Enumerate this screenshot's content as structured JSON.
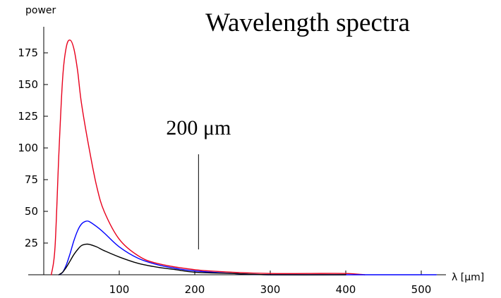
{
  "chart_data": {
    "type": "line",
    "title": "Wavelength spectra",
    "xlabel": "λ [μm]",
    "ylabel": "power",
    "xlim": [
      0,
      520
    ],
    "ylim": [
      0,
      190
    ],
    "x_ticks": [
      100,
      200,
      300,
      400,
      500
    ],
    "y_ticks": [
      25,
      50,
      75,
      100,
      125,
      150,
      175
    ],
    "grid": false,
    "annotations": [
      {
        "text": "200 μm",
        "x": 205,
        "y_from": 20,
        "y_to": 95
      }
    ],
    "series": [
      {
        "color": "#e8001c",
        "x": [
          10,
          15,
          20,
          25,
          30,
          35,
          40,
          45,
          50,
          60,
          70,
          80,
          100,
          125,
          150,
          200,
          250,
          300,
          350,
          400,
          425
        ],
        "values": [
          0,
          22,
          95,
          155,
          180,
          185,
          178,
          160,
          135,
          100,
          70,
          50,
          28,
          15,
          9,
          4,
          2,
          1,
          1,
          1,
          0
        ]
      },
      {
        "color": "#0000ff",
        "x": [
          20,
          25,
          30,
          35,
          40,
          45,
          50,
          55,
          60,
          70,
          80,
          100,
          125,
          150,
          175,
          200,
          250,
          300,
          400,
          520
        ],
        "values": [
          0,
          2,
          8,
          17,
          27,
          35,
          40,
          42,
          42,
          38,
          33,
          22,
          13,
          8,
          5,
          3,
          1,
          0,
          0,
          0
        ]
      },
      {
        "color": "#000000",
        "x": [
          20,
          25,
          30,
          35,
          40,
          45,
          50,
          55,
          60,
          70,
          80,
          100,
          125,
          150,
          175,
          200,
          250,
          300,
          400
        ],
        "values": [
          0,
          2,
          6,
          11,
          16,
          20,
          23,
          24,
          24,
          22,
          19,
          14,
          9,
          6,
          4,
          2,
          1,
          0,
          0
        ]
      }
    ]
  }
}
